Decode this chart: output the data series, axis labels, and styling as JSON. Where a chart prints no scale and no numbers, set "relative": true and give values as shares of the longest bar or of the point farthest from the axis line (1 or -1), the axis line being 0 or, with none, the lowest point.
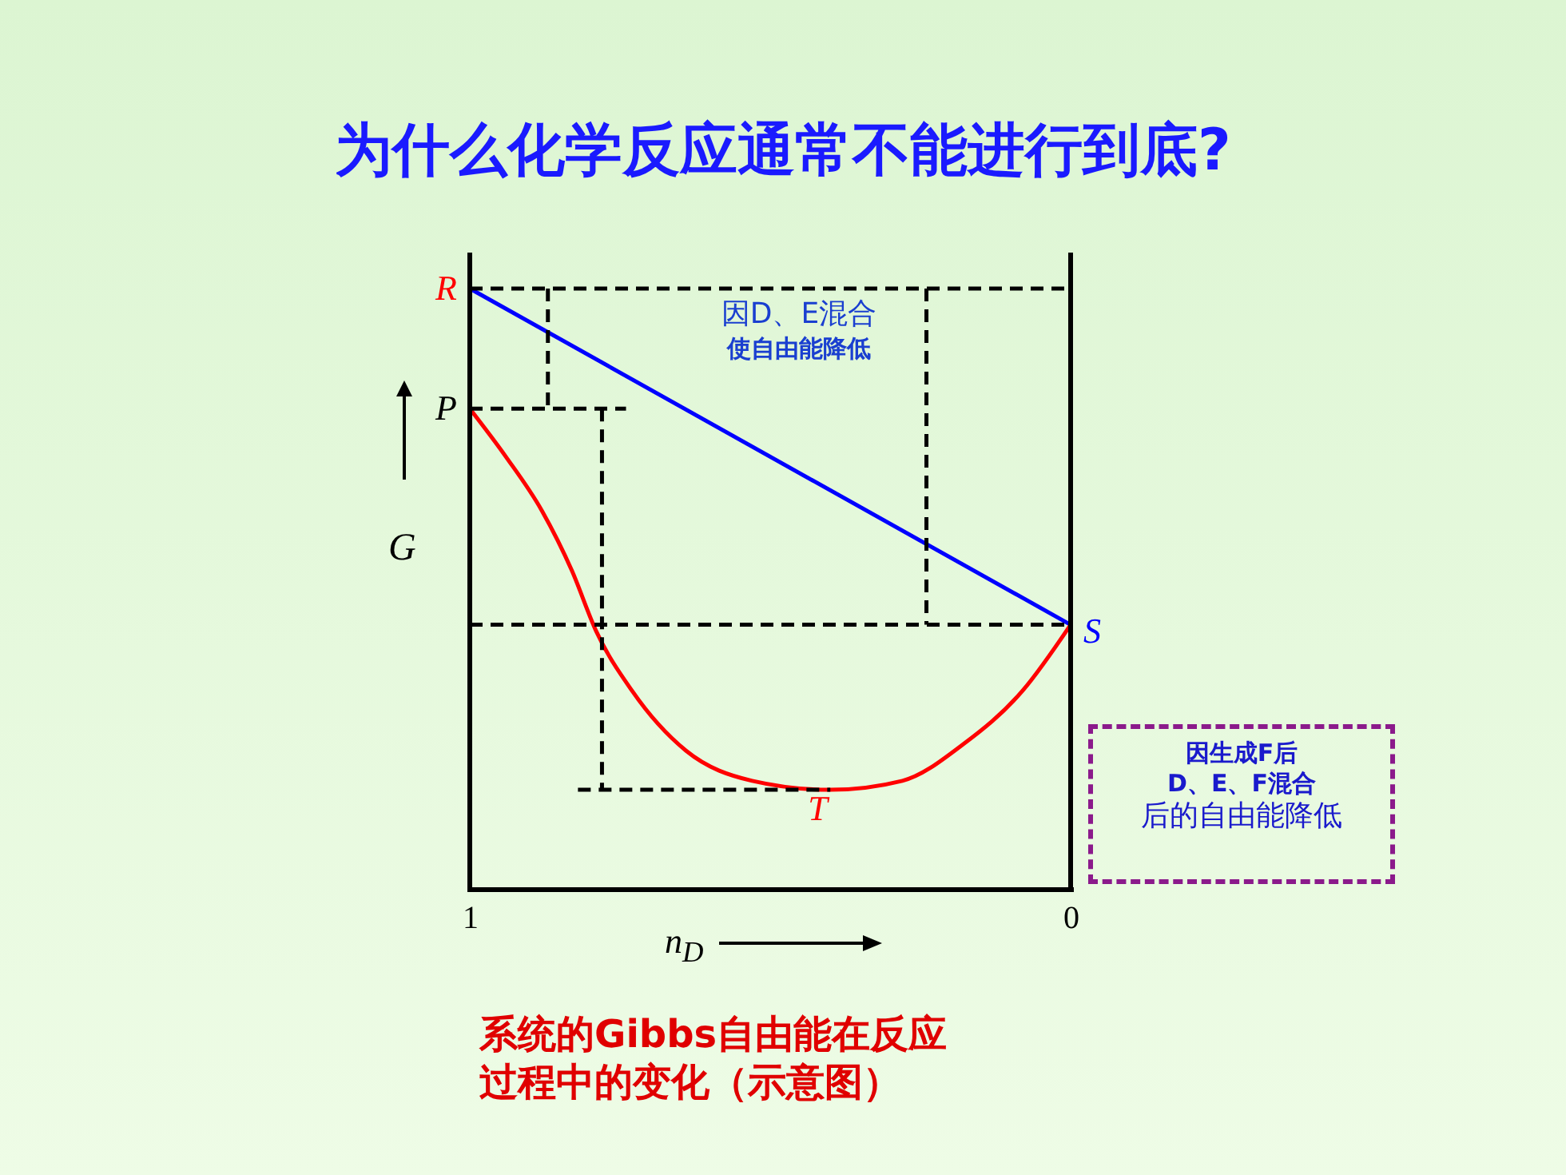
{
  "chart_data": {
    "type": "line",
    "title": "为什么化学反应通常不能进行到底?",
    "xlabel": "n$_{D}$",
    "ylabel": "G",
    "relative": true,
    "xlim": [
      1,
      0
    ],
    "xticks": [
      1,
      0
    ],
    "marker": "none",
    "series": [
      {
        "color": "#0000ff",
        "x": [
          1,
          0
        ],
        "values": [
          1,
          0.44
        ]
      },
      {
        "color": "#ff0000",
        "x": [
          1,
          0.94,
          0.88,
          0.83,
          0.79,
          0.73,
          0.64,
          0.53,
          0.4,
          0.28,
          0.18,
          0.08,
          0
        ],
        "values": [
          0.8,
          0.72,
          0.63,
          0.53,
          0.43,
          0.33,
          0.23,
          0.18,
          0.165,
          0.18,
          0.24,
          0.33,
          0.44
        ]
      },
      {
        "color": "#000000",
        "line_style": "dashed",
        "x": [
          1,
          0
        ],
        "values": [
          1,
          1
        ]
      },
      {
        "color": "#000000",
        "line_style": "dashed",
        "x": [
          1,
          0.74
        ],
        "values": [
          0.8,
          0.8
        ]
      },
      {
        "color": "#000000",
        "line_style": "dashed",
        "x": [
          1,
          0
        ],
        "values": [
          0.44,
          0.44
        ]
      },
      {
        "color": "#000000",
        "line_style": "dashed",
        "x": [
          0.82,
          0.4
        ],
        "values": [
          0.165,
          0.165
        ]
      },
      {
        "color": "#000000",
        "line_style": "dashed",
        "x": [
          0.87,
          0.87
        ],
        "values": [
          1,
          0.8
        ]
      },
      {
        "color": "#000000",
        "line_style": "dashed",
        "x": [
          0.78,
          0.78
        ],
        "values": [
          0.8,
          0.165
        ]
      },
      {
        "color": "#000000",
        "line_style": "dashed",
        "x": [
          0.24,
          0.24
        ],
        "values": [
          1,
          0.44
        ]
      }
    ],
    "annotations": [
      {
        "text": "R",
        "x": 1,
        "y": 1
      },
      {
        "text": "P",
        "x": 1,
        "y": 0.8
      },
      {
        "text": "S",
        "x": 0,
        "y": 0.44
      },
      {
        "text": "T",
        "x": 0.4,
        "y": 0.165
      },
      "因D、E混合使自由能降低",
      "因生成F后D、E、F混合后的自由能降低",
      "系统的Gibbs自由能在反应过程中的变化（示意图）"
    ]
  }
}
